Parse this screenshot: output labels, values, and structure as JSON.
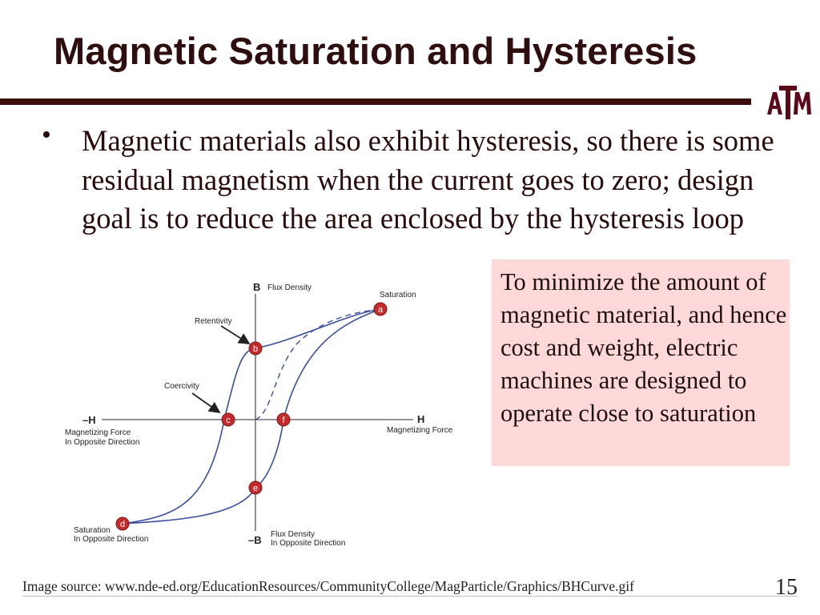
{
  "slide": {
    "title": "Magnetic Saturation and Hysteresis",
    "bullet": "Magnetic materials also exhibit hysteresis, so there is some residual magnetism when the current goes to zero; design goal is to reduce the area enclosed by the hysteresis loop",
    "callout": "To minimize the amount of magnetic material, and hence cost and weight, electric machines are designed to operate close to saturation",
    "footer": "Image source: www.nde-ed.org/EducationResources/CommunityCollege/MagParticle/Graphics/BHCurve.gif",
    "page_number": "15"
  },
  "logo": {
    "text": "ATM"
  },
  "diagram": {
    "axis_labels": {
      "b_pos": "B",
      "b_pos_desc": "Flux Density",
      "b_neg": "–B",
      "b_neg_desc_1": "Flux Density",
      "b_neg_desc_2": "In Opposite Direction",
      "h_pos": "H",
      "h_pos_desc": "Magnetizing Force",
      "h_neg": "–H",
      "h_neg_desc_1": "Magnetizing Force",
      "h_neg_desc_2": "In Opposite Direction"
    },
    "annotations": {
      "saturation": "Saturation",
      "retentivity": "Retentivity",
      "coercivity": "Coercivity",
      "saturation_opp_1": "Saturation",
      "saturation_opp_2": "In Opposite Direction"
    },
    "points": {
      "a": "a",
      "b": "b",
      "c": "c",
      "d": "d",
      "e": "e",
      "f": "f"
    }
  },
  "colors": {
    "title": "#2e0e0e",
    "rule": "#3b0d0d",
    "callout_bg": "#ffd9d9",
    "curve": "#3a4f9c",
    "point_fill": "#c62b2b"
  }
}
